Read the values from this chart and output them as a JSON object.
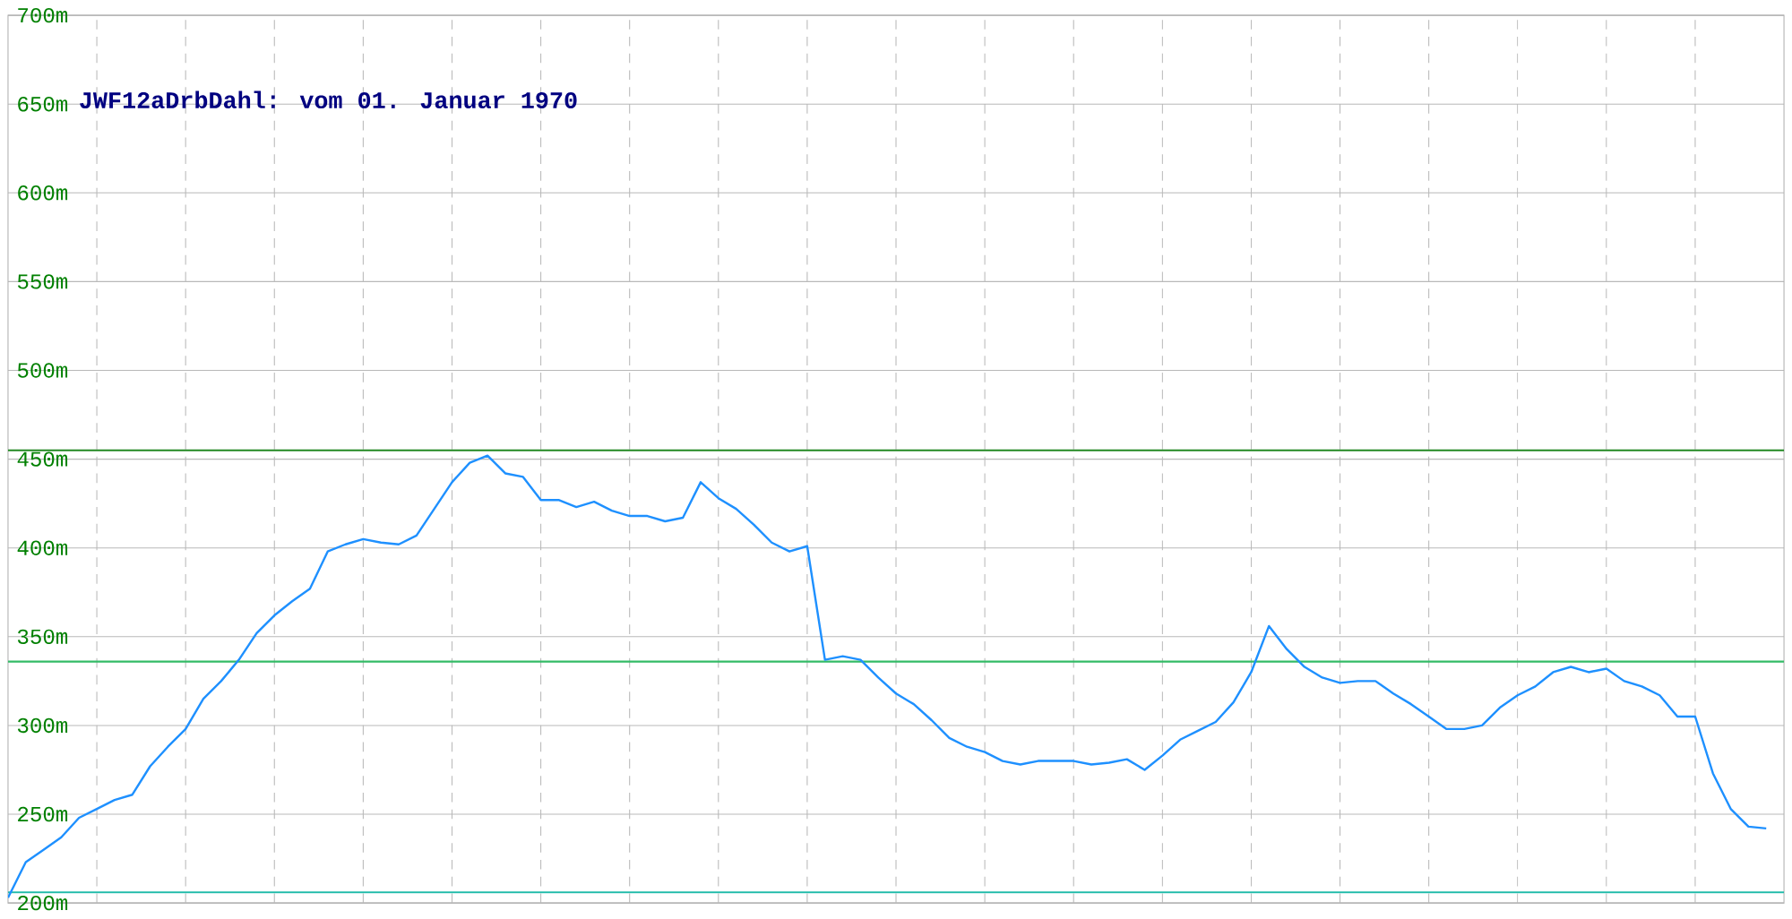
{
  "chart_data": {
    "type": "line",
    "title": "JWF12aDrbDahl: vom 01. Januar 1970",
    "categories": [
      null,
      null,
      null,
      null,
      null,
      null,
      null,
      null,
      null,
      null,
      null,
      null,
      null,
      null,
      null,
      null,
      null,
      null,
      null,
      null,
      null,
      null,
      null,
      null,
      null,
      null,
      null,
      null,
      null,
      null,
      null,
      null,
      null,
      null,
      null,
      null,
      null,
      null,
      null,
      null,
      null,
      null,
      null,
      null,
      null,
      null,
      null,
      null,
      null,
      null,
      null,
      null,
      null,
      null,
      null,
      null,
      null,
      null,
      null,
      null,
      null,
      null,
      null,
      null,
      null,
      null,
      null,
      null,
      null,
      null,
      null,
      null,
      null,
      null,
      null,
      null,
      null,
      null,
      null,
      null,
      null,
      null,
      null,
      null,
      null,
      null,
      null,
      null,
      null,
      null,
      null,
      null,
      null,
      null,
      null,
      null,
      null,
      null,
      null,
      null
    ],
    "series": [
      {
        "color": "#1e90ff",
        "values": [
          203,
          223,
          230,
          237,
          248,
          253,
          258,
          261,
          277,
          288,
          298,
          315,
          325,
          337,
          352,
          362,
          370,
          377,
          398,
          402,
          405,
          403,
          402,
          407,
          422,
          437,
          448,
          452,
          442,
          440,
          427,
          427,
          423,
          426,
          421,
          418,
          418,
          415,
          417,
          437,
          428,
          422,
          413,
          403,
          398,
          401,
          337,
          339,
          337,
          327,
          318,
          312,
          303,
          293,
          288,
          285,
          280,
          278,
          280,
          280,
          280,
          278,
          279,
          281,
          275,
          283,
          292,
          297,
          302,
          313,
          330,
          356,
          343,
          333,
          327,
          324,
          325,
          325,
          318,
          312,
          305,
          298,
          298,
          300,
          310,
          317,
          322,
          330,
          333,
          330,
          332,
          325,
          322,
          317,
          305,
          305,
          273,
          253,
          243,
          242
        ]
      }
    ],
    "ylim": [
      200,
      700
    ],
    "yticks": [
      {
        "value": 200,
        "label": "200m"
      },
      {
        "value": 250,
        "label": "250m"
      },
      {
        "value": 300,
        "label": "300m"
      },
      {
        "value": 350,
        "label": "350m"
      },
      {
        "value": 400,
        "label": "400m"
      },
      {
        "value": 450,
        "label": "450m"
      },
      {
        "value": 500,
        "label": "500m"
      },
      {
        "value": 550,
        "label": "550m"
      },
      {
        "value": 600,
        "label": "600m"
      },
      {
        "value": 650,
        "label": "650m"
      },
      {
        "value": 700,
        "label": "700m"
      }
    ],
    "grid": true,
    "marker": "none",
    "line_style": "solid",
    "ref_lines": [
      {
        "axis": "y",
        "value": 455,
        "color": "#228822"
      },
      {
        "axis": "y",
        "value": 336,
        "color": "#33bb66"
      },
      {
        "axis": "y",
        "value": 206,
        "color": "#22bbaa"
      }
    ]
  }
}
